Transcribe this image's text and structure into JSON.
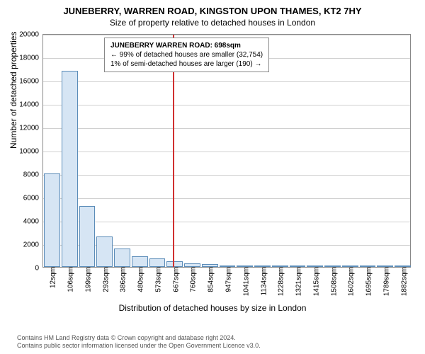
{
  "title_main": "JUNEBERRY, WARREN ROAD, KINGSTON UPON THAMES, KT2 7HY",
  "title_sub": "Size of property relative to detached houses in London",
  "chart": {
    "type": "histogram",
    "background_color": "#ffffff",
    "grid_color": "#d0d0d0",
    "border_color": "#888888",
    "bar_fill": "#d6e5f4",
    "bar_stroke": "#5b8cb8",
    "ylabel": "Number of detached properties",
    "xlabel": "Distribution of detached houses by size in London",
    "label_fontsize": 12,
    "tick_fontsize": 10,
    "ylim": [
      0,
      20000
    ],
    "ytick_step": 2000,
    "xticks": [
      "12sqm",
      "106sqm",
      "199sqm",
      "293sqm",
      "386sqm",
      "480sqm",
      "573sqm",
      "667sqm",
      "760sqm",
      "854sqm",
      "947sqm",
      "1041sqm",
      "1134sqm",
      "1228sqm",
      "1321sqm",
      "1415sqm",
      "1508sqm",
      "1602sqm",
      "1695sqm",
      "1789sqm",
      "1882sqm"
    ],
    "xtick_rotation": -90,
    "bars": [
      8000,
      16800,
      5200,
      2600,
      1600,
      900,
      700,
      500,
      300,
      250,
      150,
      90,
      70,
      50,
      35,
      25,
      18,
      14,
      10,
      6,
      3
    ],
    "ref_line_index": 7.4,
    "ref_line_color": "#d03030"
  },
  "annotation": {
    "title": "JUNEBERRY WARREN ROAD: 698sqm",
    "line1": "← 99% of detached houses are smaller (32,754)",
    "line2": "1% of semi-detached houses are larger (190) →"
  },
  "footer": {
    "line1": "Contains HM Land Registry data © Crown copyright and database right 2024.",
    "line2": "Contains public sector information licensed under the Open Government Licence v3.0."
  }
}
